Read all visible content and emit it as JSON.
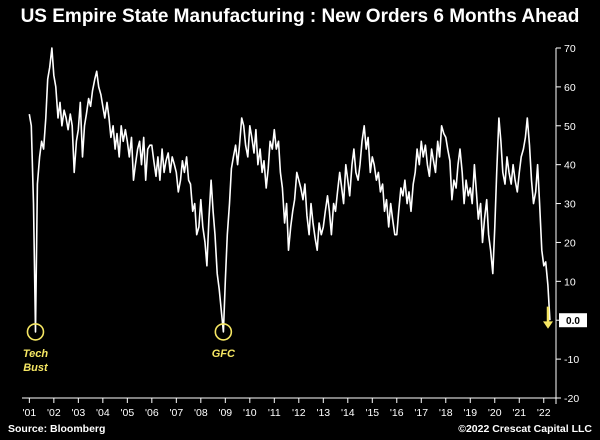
{
  "chart_data": {
    "type": "line",
    "title": "US Empire State Manufacturing : New Orders 6 Months Ahead",
    "xlabel": "",
    "ylabel": "",
    "ylim": [
      -20,
      70
    ],
    "yticks": [
      -20,
      -10,
      0,
      10,
      20,
      30,
      40,
      50,
      60,
      70
    ],
    "ytick_labels": [
      "-20",
      "-10",
      "0",
      "10",
      "20",
      "30",
      "40",
      "50",
      "60",
      "70"
    ],
    "xlim": [
      2000.7,
      2022.5
    ],
    "xticks": [
      2001,
      2002,
      2003,
      2004,
      2005,
      2006,
      2007,
      2008,
      2009,
      2010,
      2011,
      2012,
      2013,
      2014,
      2015,
      2016,
      2017,
      2018,
      2019,
      2020,
      2021,
      2022
    ],
    "xtick_labels": [
      "'01",
      "'02",
      "'03",
      "'04",
      "'05",
      "'06",
      "'07",
      "'08",
      "'09",
      "'10",
      "'11",
      "'12",
      "'13",
      "'14",
      "'15",
      "'16",
      "'17",
      "'18",
      "'19",
      "'20",
      "'21",
      "'22"
    ],
    "grid": false,
    "series": [
      {
        "name": "New Orders 6 Months Ahead",
        "color": "#ffffff",
        "points": [
          [
            2001.0,
            53
          ],
          [
            2001.08,
            50
          ],
          [
            2001.17,
            30
          ],
          [
            2001.25,
            -3
          ],
          [
            2001.33,
            35
          ],
          [
            2001.42,
            42
          ],
          [
            2001.5,
            46
          ],
          [
            2001.58,
            44
          ],
          [
            2001.67,
            52
          ],
          [
            2001.75,
            62
          ],
          [
            2001.83,
            65
          ],
          [
            2001.92,
            70
          ],
          [
            2002.0,
            63
          ],
          [
            2002.08,
            60
          ],
          [
            2002.17,
            52
          ],
          [
            2002.25,
            56
          ],
          [
            2002.33,
            50
          ],
          [
            2002.42,
            54
          ],
          [
            2002.5,
            52
          ],
          [
            2002.58,
            49
          ],
          [
            2002.67,
            53
          ],
          [
            2002.75,
            50
          ],
          [
            2002.83,
            38
          ],
          [
            2002.92,
            46
          ],
          [
            2003.0,
            49
          ],
          [
            2003.08,
            56
          ],
          [
            2003.17,
            42
          ],
          [
            2003.25,
            50
          ],
          [
            2003.33,
            53
          ],
          [
            2003.42,
            57
          ],
          [
            2003.5,
            55
          ],
          [
            2003.58,
            59
          ],
          [
            2003.67,
            62
          ],
          [
            2003.75,
            64
          ],
          [
            2003.83,
            60
          ],
          [
            2003.92,
            58
          ],
          [
            2004.0,
            55
          ],
          [
            2004.08,
            52
          ],
          [
            2004.17,
            56
          ],
          [
            2004.25,
            52
          ],
          [
            2004.33,
            47
          ],
          [
            2004.42,
            50
          ],
          [
            2004.5,
            44
          ],
          [
            2004.58,
            48
          ],
          [
            2004.67,
            42
          ],
          [
            2004.75,
            50
          ],
          [
            2004.83,
            46
          ],
          [
            2004.92,
            49
          ],
          [
            2005.0,
            46
          ],
          [
            2005.08,
            42
          ],
          [
            2005.17,
            47
          ],
          [
            2005.25,
            36
          ],
          [
            2005.33,
            40
          ],
          [
            2005.42,
            44
          ],
          [
            2005.5,
            46
          ],
          [
            2005.58,
            40
          ],
          [
            2005.67,
            47
          ],
          [
            2005.75,
            36
          ],
          [
            2005.83,
            44
          ],
          [
            2005.92,
            45
          ],
          [
            2006.0,
            45
          ],
          [
            2006.08,
            41
          ],
          [
            2006.17,
            37
          ],
          [
            2006.25,
            42
          ],
          [
            2006.33,
            36
          ],
          [
            2006.42,
            44
          ],
          [
            2006.5,
            38
          ],
          [
            2006.58,
            41
          ],
          [
            2006.67,
            43
          ],
          [
            2006.75,
            38
          ],
          [
            2006.83,
            42
          ],
          [
            2006.92,
            40
          ],
          [
            2007.0,
            38
          ],
          [
            2007.08,
            33
          ],
          [
            2007.17,
            36
          ],
          [
            2007.25,
            41
          ],
          [
            2007.33,
            38
          ],
          [
            2007.42,
            42
          ],
          [
            2007.5,
            36
          ],
          [
            2007.58,
            35
          ],
          [
            2007.67,
            28
          ],
          [
            2007.75,
            30
          ],
          [
            2007.83,
            22
          ],
          [
            2007.92,
            24
          ],
          [
            2008.0,
            31
          ],
          [
            2008.08,
            24
          ],
          [
            2008.17,
            20
          ],
          [
            2008.25,
            14
          ],
          [
            2008.33,
            26
          ],
          [
            2008.42,
            36
          ],
          [
            2008.5,
            28
          ],
          [
            2008.58,
            22
          ],
          [
            2008.67,
            12
          ],
          [
            2008.75,
            8
          ],
          [
            2008.83,
            3
          ],
          [
            2008.92,
            -3
          ],
          [
            2009.0,
            10
          ],
          [
            2009.08,
            22
          ],
          [
            2009.17,
            30
          ],
          [
            2009.25,
            39
          ],
          [
            2009.33,
            42
          ],
          [
            2009.42,
            45
          ],
          [
            2009.5,
            40
          ],
          [
            2009.58,
            45
          ],
          [
            2009.67,
            52
          ],
          [
            2009.75,
            50
          ],
          [
            2009.83,
            45
          ],
          [
            2009.92,
            42
          ],
          [
            2010.0,
            50
          ],
          [
            2010.08,
            47
          ],
          [
            2010.17,
            43
          ],
          [
            2010.25,
            49
          ],
          [
            2010.33,
            40
          ],
          [
            2010.42,
            44
          ],
          [
            2010.5,
            38
          ],
          [
            2010.58,
            41
          ],
          [
            2010.67,
            34
          ],
          [
            2010.75,
            39
          ],
          [
            2010.83,
            46
          ],
          [
            2010.92,
            44
          ],
          [
            2011.0,
            49
          ],
          [
            2011.08,
            44
          ],
          [
            2011.17,
            46
          ],
          [
            2011.25,
            38
          ],
          [
            2011.33,
            34
          ],
          [
            2011.42,
            25
          ],
          [
            2011.5,
            30
          ],
          [
            2011.58,
            18
          ],
          [
            2011.67,
            24
          ],
          [
            2011.75,
            28
          ],
          [
            2011.83,
            31
          ],
          [
            2011.92,
            38
          ],
          [
            2012.0,
            36
          ],
          [
            2012.08,
            34
          ],
          [
            2012.17,
            31
          ],
          [
            2012.25,
            35
          ],
          [
            2012.33,
            27
          ],
          [
            2012.42,
            22
          ],
          [
            2012.5,
            30
          ],
          [
            2012.58,
            25
          ],
          [
            2012.67,
            21
          ],
          [
            2012.75,
            18
          ],
          [
            2012.83,
            25
          ],
          [
            2012.92,
            22
          ],
          [
            2013.0,
            24
          ],
          [
            2013.08,
            28
          ],
          [
            2013.17,
            32
          ],
          [
            2013.25,
            28
          ],
          [
            2013.33,
            22
          ],
          [
            2013.42,
            30
          ],
          [
            2013.5,
            28
          ],
          [
            2013.58,
            33
          ],
          [
            2013.67,
            38
          ],
          [
            2013.75,
            34
          ],
          [
            2013.83,
            30
          ],
          [
            2013.92,
            40
          ],
          [
            2014.0,
            36
          ],
          [
            2014.08,
            32
          ],
          [
            2014.17,
            40
          ],
          [
            2014.25,
            44
          ],
          [
            2014.33,
            38
          ],
          [
            2014.42,
            36
          ],
          [
            2014.5,
            40
          ],
          [
            2014.58,
            46
          ],
          [
            2014.67,
            50
          ],
          [
            2014.75,
            44
          ],
          [
            2014.83,
            47
          ],
          [
            2014.92,
            38
          ],
          [
            2015.0,
            42
          ],
          [
            2015.08,
            40
          ],
          [
            2015.17,
            36
          ],
          [
            2015.25,
            38
          ],
          [
            2015.33,
            33
          ],
          [
            2015.42,
            35
          ],
          [
            2015.5,
            28
          ],
          [
            2015.58,
            31
          ],
          [
            2015.67,
            24
          ],
          [
            2015.75,
            30
          ],
          [
            2015.83,
            26
          ],
          [
            2015.92,
            22
          ],
          [
            2016.0,
            22
          ],
          [
            2016.08,
            28
          ],
          [
            2016.17,
            34
          ],
          [
            2016.25,
            32
          ],
          [
            2016.33,
            36
          ],
          [
            2016.42,
            30
          ],
          [
            2016.5,
            33
          ],
          [
            2016.58,
            28
          ],
          [
            2016.67,
            35
          ],
          [
            2016.75,
            38
          ],
          [
            2016.83,
            44
          ],
          [
            2016.92,
            40
          ],
          [
            2017.0,
            46
          ],
          [
            2017.08,
            42
          ],
          [
            2017.17,
            45
          ],
          [
            2017.25,
            40
          ],
          [
            2017.33,
            37
          ],
          [
            2017.42,
            44
          ],
          [
            2017.5,
            41
          ],
          [
            2017.58,
            38
          ],
          [
            2017.67,
            46
          ],
          [
            2017.75,
            42
          ],
          [
            2017.83,
            50
          ],
          [
            2017.92,
            48
          ],
          [
            2018.0,
            47
          ],
          [
            2018.08,
            44
          ],
          [
            2018.17,
            41
          ],
          [
            2018.25,
            31
          ],
          [
            2018.33,
            36
          ],
          [
            2018.42,
            34
          ],
          [
            2018.5,
            40
          ],
          [
            2018.58,
            44
          ],
          [
            2018.67,
            38
          ],
          [
            2018.75,
            30
          ],
          [
            2018.83,
            36
          ],
          [
            2018.92,
            32
          ],
          [
            2019.0,
            34
          ],
          [
            2019.08,
            30
          ],
          [
            2019.17,
            40
          ],
          [
            2019.25,
            33
          ],
          [
            2019.33,
            26
          ],
          [
            2019.42,
            30
          ],
          [
            2019.5,
            20
          ],
          [
            2019.58,
            26
          ],
          [
            2019.67,
            31
          ],
          [
            2019.75,
            22
          ],
          [
            2019.83,
            18
          ],
          [
            2019.92,
            12
          ],
          [
            2020.0,
            24
          ],
          [
            2020.08,
            38
          ],
          [
            2020.17,
            52
          ],
          [
            2020.25,
            46
          ],
          [
            2020.33,
            38
          ],
          [
            2020.42,
            35
          ],
          [
            2020.5,
            42
          ],
          [
            2020.58,
            38
          ],
          [
            2020.67,
            35
          ],
          [
            2020.75,
            40
          ],
          [
            2020.83,
            36
          ],
          [
            2020.92,
            33
          ],
          [
            2021.0,
            38
          ],
          [
            2021.08,
            42
          ],
          [
            2021.17,
            44
          ],
          [
            2021.25,
            47
          ],
          [
            2021.33,
            52
          ],
          [
            2021.42,
            45
          ],
          [
            2021.5,
            36
          ],
          [
            2021.58,
            30
          ],
          [
            2021.67,
            33
          ],
          [
            2021.75,
            40
          ],
          [
            2021.83,
            30
          ],
          [
            2021.92,
            18
          ],
          [
            2022.0,
            14
          ],
          [
            2022.08,
            15
          ],
          [
            2022.17,
            9
          ],
          [
            2022.25,
            0
          ]
        ]
      }
    ],
    "last_value_label": "0.0",
    "annotations": [
      {
        "name": "tech-bust",
        "text_lines": [
          "Tech",
          "Bust"
        ],
        "x": 2001.25,
        "y": -3,
        "color": "#f5e663"
      },
      {
        "name": "gfc",
        "text_lines": [
          "GFC"
        ],
        "x": 2008.92,
        "y": -3,
        "color": "#f5e663"
      }
    ],
    "arrow_color": "#f5e663",
    "axis_color": "#ffffff"
  },
  "footer": {
    "source": "Source: Bloomberg",
    "copyright": "©2022 Crescat Capital LLC"
  }
}
